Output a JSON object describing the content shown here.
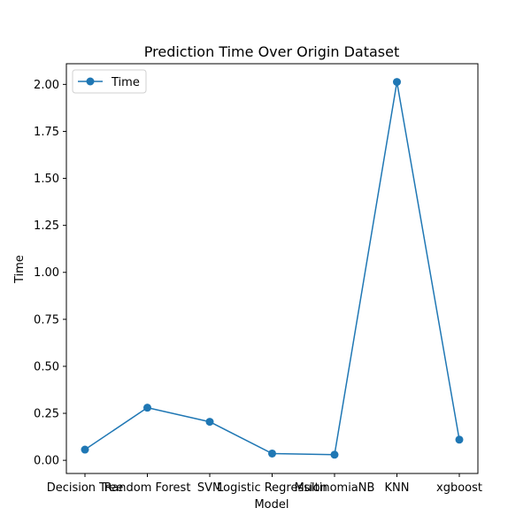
{
  "chart_data": {
    "type": "line",
    "title": "Prediction Time Over Origin Dataset",
    "xlabel": "Model",
    "ylabel": "Time",
    "categories": [
      "Decision Tree",
      "Random Forest",
      "SVM",
      "Logistic Regression",
      "MultinomiaNB",
      "KNN",
      "xgboost"
    ],
    "series": [
      {
        "name": "Time",
        "values": [
          0.057,
          0.28,
          0.205,
          0.036,
          0.03,
          2.013,
          0.11
        ],
        "color": "#1f77b4",
        "marker": "circle"
      }
    ],
    "ylim": [
      -0.07,
      2.11
    ],
    "yticks": [
      "0.00",
      "0.25",
      "0.50",
      "0.75",
      "1.00",
      "1.25",
      "1.50",
      "1.75",
      "2.00"
    ],
    "legend_position": "top-left",
    "grid": false
  }
}
